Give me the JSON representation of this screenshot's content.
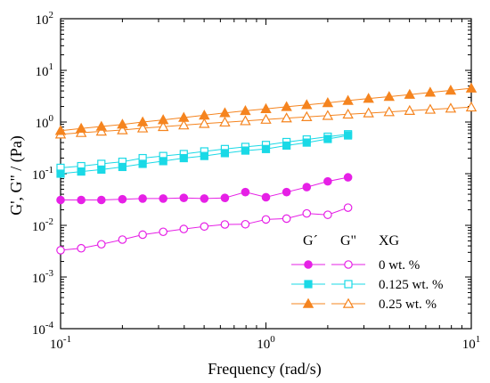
{
  "chart_data": {
    "type": "scatter",
    "title": "",
    "xlabel": "Frequency (rad/s)",
    "ylabel": "G', G\" / (Pa)",
    "x_scale": "log",
    "y_scale": "log",
    "xlim": [
      0.1,
      10
    ],
    "ylim": [
      0.0001,
      100
    ],
    "grid": false,
    "legend_position": "lower-right",
    "x_ticks": [
      {
        "value": 0.1,
        "base": "10",
        "exp": "-1"
      },
      {
        "value": 1,
        "base": "10",
        "exp": "0"
      },
      {
        "value": 10,
        "base": "10",
        "exp": "1"
      }
    ],
    "y_ticks": [
      {
        "value": 0.0001,
        "base": "10",
        "exp": "-4"
      },
      {
        "value": 0.001,
        "base": "10",
        "exp": "-3"
      },
      {
        "value": 0.01,
        "base": "10",
        "exp": "-2"
      },
      {
        "value": 0.1,
        "base": "10",
        "exp": "-1"
      },
      {
        "value": 1,
        "base": "10",
        "exp": "0"
      },
      {
        "value": 10,
        "base": "10",
        "exp": "1"
      },
      {
        "value": 100,
        "base": "10",
        "exp": "2"
      }
    ],
    "legend": {
      "header_storage": "G´",
      "header_loss": "G\"",
      "header_concentration": "XG"
    },
    "series": [
      {
        "name": "0 wt. %",
        "color": "#e620e6",
        "marker": "circle",
        "x": [
          0.1,
          0.126,
          0.158,
          0.2,
          0.251,
          0.316,
          0.398,
          0.501,
          0.631,
          0.794,
          1.0,
          1.26,
          1.58,
          2.0,
          2.51
        ],
        "storage": [
          0.031,
          0.031,
          0.031,
          0.032,
          0.033,
          0.033,
          0.034,
          0.033,
          0.034,
          0.044,
          0.035,
          0.044,
          0.055,
          0.071,
          0.085
        ],
        "loss": [
          0.0033,
          0.0036,
          0.0043,
          0.0053,
          0.0066,
          0.0075,
          0.0085,
          0.0095,
          0.0104,
          0.0105,
          0.013,
          0.0135,
          0.017,
          0.016,
          0.022
        ]
      },
      {
        "name": "0.125 wt. %",
        "color": "#1ad9e6",
        "marker": "square",
        "x": [
          0.1,
          0.126,
          0.158,
          0.2,
          0.251,
          0.316,
          0.398,
          0.501,
          0.631,
          0.794,
          1.0,
          1.26,
          1.58,
          2.0,
          2.51
        ],
        "storage": [
          0.1,
          0.11,
          0.12,
          0.135,
          0.155,
          0.175,
          0.2,
          0.22,
          0.25,
          0.28,
          0.3,
          0.35,
          0.4,
          0.47,
          0.55
        ],
        "loss": [
          0.13,
          0.14,
          0.155,
          0.17,
          0.2,
          0.22,
          0.24,
          0.27,
          0.3,
          0.33,
          0.36,
          0.41,
          0.46,
          0.52,
          0.58
        ]
      },
      {
        "name": "0.25 wt. %",
        "color": "#f5841f",
        "marker": "triangle",
        "x": [
          0.1,
          0.126,
          0.158,
          0.2,
          0.251,
          0.316,
          0.398,
          0.501,
          0.631,
          0.794,
          1.0,
          1.26,
          1.58,
          2.0,
          2.51,
          3.16,
          3.98,
          5.01,
          6.31,
          7.94,
          10.0
        ],
        "storage": [
          0.68,
          0.75,
          0.82,
          0.9,
          1.0,
          1.1,
          1.22,
          1.35,
          1.5,
          1.65,
          1.8,
          1.97,
          2.15,
          2.35,
          2.6,
          2.85,
          3.1,
          3.4,
          3.75,
          4.1,
          4.5
        ],
        "loss": [
          0.58,
          0.62,
          0.66,
          0.7,
          0.76,
          0.81,
          0.87,
          0.93,
          0.99,
          1.05,
          1.12,
          1.19,
          1.26,
          1.33,
          1.41,
          1.49,
          1.57,
          1.66,
          1.75,
          1.84,
          1.94
        ]
      }
    ]
  }
}
